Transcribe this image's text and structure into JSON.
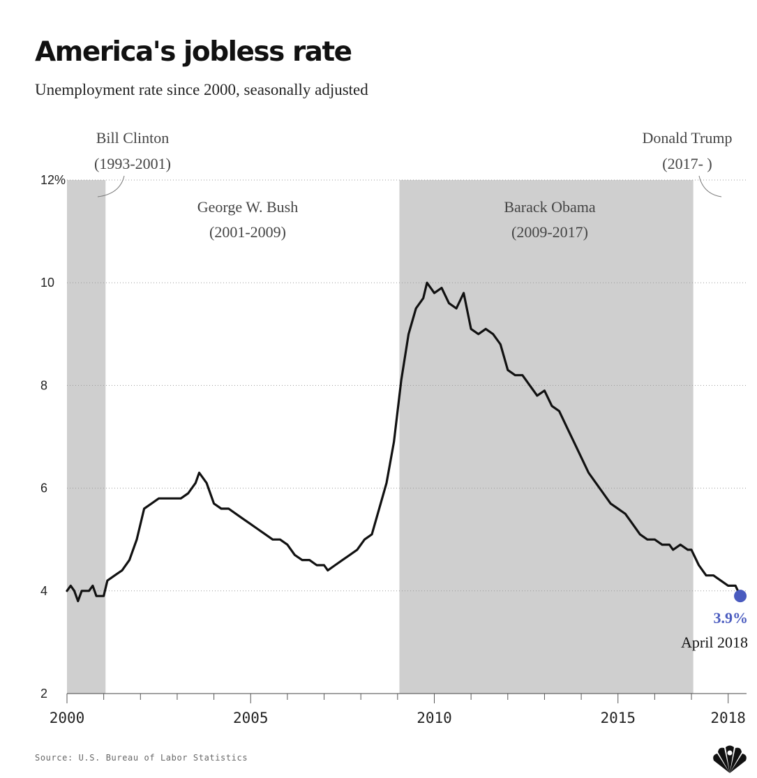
{
  "chart_data": {
    "type": "line",
    "title": "America's jobless rate",
    "subtitle": "Unemployment rate since 2000, seasonally adjusted",
    "xlabel": "",
    "ylabel": "",
    "xlim": [
      2000,
      2018.5
    ],
    "ylim": [
      2,
      12
    ],
    "y_ticks": [
      {
        "value": 2,
        "label": "2"
      },
      {
        "value": 4,
        "label": "4"
      },
      {
        "value": 6,
        "label": "6"
      },
      {
        "value": 8,
        "label": "8"
      },
      {
        "value": 10,
        "label": "10"
      },
      {
        "value": 12,
        "label": "12%"
      }
    ],
    "x_ticks": [
      {
        "value": 2000,
        "label": "2000"
      },
      {
        "value": 2005,
        "label": "2005"
      },
      {
        "value": 2010,
        "label": "2010"
      },
      {
        "value": 2015,
        "label": "2015"
      },
      {
        "value": 2018,
        "label": "2018"
      }
    ],
    "grid": "horizontal dotted",
    "presidencies": [
      {
        "name": "Bill Clinton",
        "years": "(1993-2001)",
        "start": 2000,
        "end": 2001.05,
        "shaded": true
      },
      {
        "name": "George W. Bush",
        "years": "(2001-2009)",
        "start": 2001.05,
        "end": 2009.05,
        "shaded": false
      },
      {
        "name": "Barack Obama",
        "years": "(2009-2017)",
        "start": 2009.05,
        "end": 2017.05,
        "shaded": true
      },
      {
        "name": "Donald Trump",
        "years": "(2017- )",
        "start": 2017.05,
        "end": 2018.5,
        "shaded": false
      }
    ],
    "series": [
      {
        "name": "Unemployment rate",
        "unit": "%",
        "points": [
          [
            2000.0,
            4.0
          ],
          [
            2000.1,
            4.1
          ],
          [
            2000.2,
            4.0
          ],
          [
            2000.3,
            3.8
          ],
          [
            2000.4,
            4.0
          ],
          [
            2000.5,
            4.0
          ],
          [
            2000.6,
            4.0
          ],
          [
            2000.7,
            4.1
          ],
          [
            2000.8,
            3.9
          ],
          [
            2000.9,
            3.9
          ],
          [
            2001.0,
            3.9
          ],
          [
            2001.1,
            4.2
          ],
          [
            2001.3,
            4.3
          ],
          [
            2001.5,
            4.4
          ],
          [
            2001.7,
            4.6
          ],
          [
            2001.9,
            5.0
          ],
          [
            2002.1,
            5.6
          ],
          [
            2002.3,
            5.7
          ],
          [
            2002.5,
            5.8
          ],
          [
            2002.7,
            5.8
          ],
          [
            2002.9,
            5.8
          ],
          [
            2003.1,
            5.8
          ],
          [
            2003.3,
            5.9
          ],
          [
            2003.5,
            6.1
          ],
          [
            2003.6,
            6.3
          ],
          [
            2003.8,
            6.1
          ],
          [
            2004.0,
            5.7
          ],
          [
            2004.2,
            5.6
          ],
          [
            2004.4,
            5.6
          ],
          [
            2004.6,
            5.5
          ],
          [
            2004.8,
            5.4
          ],
          [
            2005.0,
            5.3
          ],
          [
            2005.2,
            5.2
          ],
          [
            2005.4,
            5.1
          ],
          [
            2005.6,
            5.0
          ],
          [
            2005.8,
            5.0
          ],
          [
            2006.0,
            4.9
          ],
          [
            2006.2,
            4.7
          ],
          [
            2006.4,
            4.6
          ],
          [
            2006.6,
            4.6
          ],
          [
            2006.8,
            4.5
          ],
          [
            2007.0,
            4.5
          ],
          [
            2007.1,
            4.4
          ],
          [
            2007.3,
            4.5
          ],
          [
            2007.5,
            4.6
          ],
          [
            2007.7,
            4.7
          ],
          [
            2007.9,
            4.8
          ],
          [
            2008.1,
            5.0
          ],
          [
            2008.3,
            5.1
          ],
          [
            2008.5,
            5.6
          ],
          [
            2008.7,
            6.1
          ],
          [
            2008.9,
            6.9
          ],
          [
            2009.1,
            8.1
          ],
          [
            2009.3,
            9.0
          ],
          [
            2009.5,
            9.5
          ],
          [
            2009.7,
            9.7
          ],
          [
            2009.8,
            10.0
          ],
          [
            2010.0,
            9.8
          ],
          [
            2010.2,
            9.9
          ],
          [
            2010.4,
            9.6
          ],
          [
            2010.6,
            9.5
          ],
          [
            2010.8,
            9.8
          ],
          [
            2011.0,
            9.1
          ],
          [
            2011.2,
            9.0
          ],
          [
            2011.4,
            9.1
          ],
          [
            2011.6,
            9.0
          ],
          [
            2011.8,
            8.8
          ],
          [
            2012.0,
            8.3
          ],
          [
            2012.2,
            8.2
          ],
          [
            2012.4,
            8.2
          ],
          [
            2012.6,
            8.0
          ],
          [
            2012.8,
            7.8
          ],
          [
            2013.0,
            7.9
          ],
          [
            2013.2,
            7.6
          ],
          [
            2013.4,
            7.5
          ],
          [
            2013.6,
            7.2
          ],
          [
            2013.8,
            6.9
          ],
          [
            2014.0,
            6.6
          ],
          [
            2014.2,
            6.3
          ],
          [
            2014.4,
            6.1
          ],
          [
            2014.6,
            5.9
          ],
          [
            2014.8,
            5.7
          ],
          [
            2015.0,
            5.6
          ],
          [
            2015.2,
            5.5
          ],
          [
            2015.4,
            5.3
          ],
          [
            2015.6,
            5.1
          ],
          [
            2015.8,
            5.0
          ],
          [
            2016.0,
            5.0
          ],
          [
            2016.2,
            4.9
          ],
          [
            2016.4,
            4.9
          ],
          [
            2016.5,
            4.8
          ],
          [
            2016.7,
            4.9
          ],
          [
            2016.9,
            4.8
          ],
          [
            2017.0,
            4.8
          ],
          [
            2017.2,
            4.5
          ],
          [
            2017.4,
            4.3
          ],
          [
            2017.6,
            4.3
          ],
          [
            2017.8,
            4.2
          ],
          [
            2018.0,
            4.1
          ],
          [
            2018.2,
            4.1
          ],
          [
            2018.33,
            3.9
          ]
        ]
      }
    ],
    "annotation": {
      "value": 3.9,
      "x": 2018.33,
      "label": "3.9%",
      "date": "April 2018",
      "color": "#4a5bbf"
    }
  },
  "source": "Source: U.S. Bureau of Labor Statistics",
  "logo_icon": "peacock-logo-icon"
}
